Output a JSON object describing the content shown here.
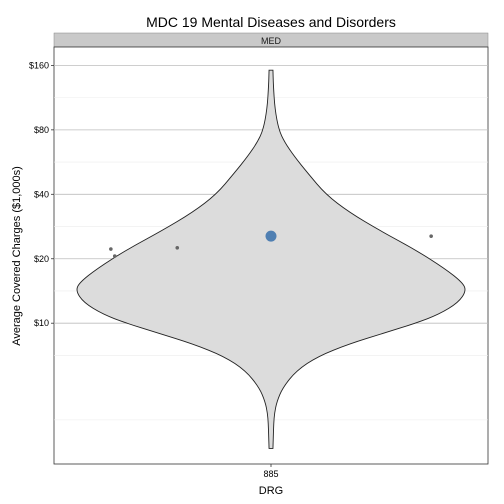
{
  "chart_data": {
    "type": "violin",
    "title": "MDC 19 Mental Diseases and Disorders",
    "facet": "MED",
    "xlabel": "DRG",
    "ylabel": "Average Covered Charges ($1,000s)",
    "y_scale": "log",
    "y_tick_labels": [
      "$10",
      "$20",
      "$40",
      "$80",
      "$160"
    ],
    "y_tick_values": [
      10,
      20,
      40,
      80,
      160
    ],
    "ylim": [
      2.2,
      195
    ],
    "categories": [
      "885"
    ],
    "violin": {
      "category": "885",
      "ymin": 2.6,
      "ymax": 152,
      "profile": [
        [
          152,
          0.01
        ],
        [
          130,
          0.012
        ],
        [
          100,
          0.02
        ],
        [
          80,
          0.04
        ],
        [
          70,
          0.07
        ],
        [
          60,
          0.12
        ],
        [
          50,
          0.19
        ],
        [
          40,
          0.28
        ],
        [
          33,
          0.4
        ],
        [
          27,
          0.56
        ],
        [
          22,
          0.74
        ],
        [
          18,
          0.89
        ],
        [
          15.5,
          0.98
        ],
        [
          14.2,
          1.0
        ],
        [
          12.5,
          0.96
        ],
        [
          11,
          0.86
        ],
        [
          10,
          0.74
        ],
        [
          9,
          0.58
        ],
        [
          8,
          0.4
        ],
        [
          7,
          0.24
        ],
        [
          6,
          0.13
        ],
        [
          5,
          0.06
        ],
        [
          4.3,
          0.03
        ],
        [
          3.8,
          0.018
        ],
        [
          3.4,
          0.014
        ],
        [
          3.0,
          0.012
        ],
        [
          2.6,
          0.01
        ]
      ]
    },
    "mean_point": {
      "category": "885",
      "y": 25.5,
      "color": "#4f7fb2"
    },
    "outliers": [
      {
        "dx": -0.82,
        "y": 22.2
      },
      {
        "dx": -0.8,
        "y": 20.6
      },
      {
        "dx": -0.48,
        "y": 22.5
      },
      {
        "dx": 0.82,
        "y": 25.5
      }
    ],
    "colors": {
      "violin_fill": "#dcdcdc",
      "grid": "#bdbdbd",
      "grid_minor": "#ececec",
      "strip": "#c9c9c9",
      "outlier": "#666666"
    },
    "grid": true,
    "legend": "none"
  }
}
